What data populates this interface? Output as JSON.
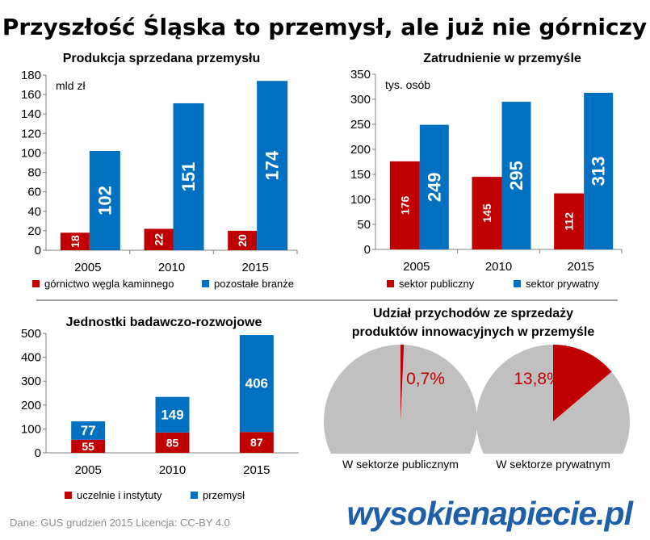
{
  "title": "Przyszłość Śląska to przemysł, ale już nie górniczy",
  "chart_data": [
    {
      "id": "sales",
      "type": "bar",
      "title": "Produkcja sprzedana przemysłu",
      "unit_label": "mld zł",
      "categories": [
        "2005",
        "2010",
        "2015"
      ],
      "series": [
        {
          "name": "górnictwo węgla kaminnego",
          "color": "#c00000",
          "values": [
            18,
            22,
            20
          ]
        },
        {
          "name": "pozostałe branże",
          "color": "#0070c0",
          "values": [
            102,
            151,
            174
          ]
        }
      ],
      "ylim": [
        0,
        180
      ],
      "yticks": [
        0,
        20,
        40,
        60,
        80,
        100,
        120,
        140,
        160,
        180
      ],
      "grid": false,
      "legend": "bottom"
    },
    {
      "id": "employment",
      "type": "bar",
      "title": "Zatrudnienie w przemyśle",
      "unit_label": "tys. osób",
      "categories": [
        "2005",
        "2010",
        "2015"
      ],
      "series": [
        {
          "name": "sektor publiczny",
          "color": "#c00000",
          "values": [
            176,
            145,
            112
          ]
        },
        {
          "name": "sektor prywatny",
          "color": "#0070c0",
          "values": [
            249,
            295,
            313
          ]
        }
      ],
      "ylim": [
        0,
        350
      ],
      "yticks": [
        0,
        50,
        100,
        150,
        200,
        250,
        300,
        350
      ],
      "grid": false,
      "legend": "bottom"
    },
    {
      "id": "rnd",
      "type": "stacked-bar",
      "title": "Jednostki badawczo-rozwojowe",
      "categories": [
        "2005",
        "2010",
        "2015"
      ],
      "series": [
        {
          "name": "uczelnie i instytuty",
          "color": "#c00000",
          "values": [
            55,
            85,
            87
          ]
        },
        {
          "name": "przemysł",
          "color": "#0070c0",
          "values": [
            77,
            149,
            406
          ]
        }
      ],
      "ylim": [
        0,
        500
      ],
      "yticks": [
        0,
        100,
        200,
        300,
        400,
        500
      ],
      "grid": false,
      "legend": "bottom"
    },
    {
      "id": "innovation",
      "type": "pie",
      "title": "Udział przychodów ze sprzedaży produktów innowacyjnych w przemyśle",
      "title_lines": [
        "Udział przychodów ze sprzedaży",
        "produktów innowacyjnych w przemyśle"
      ],
      "slices": [
        {
          "label": "W sektorze publicznym",
          "share_percent": 0.7,
          "value_label": "0,7%"
        },
        {
          "label": "W sektorze prywatnym",
          "share_percent": 13.8,
          "value_label": "13,8%"
        }
      ],
      "highlight_color": "#c00000",
      "rest_color": "#c0c0c0",
      "value_color": "#c00000"
    }
  ],
  "footer": {
    "source": "Dane: GUS   grudzień 2015   Licencja: CC-BY 4.0",
    "logo_text": "wysokienapiecie.pl",
    "logo_color": "#1f5fa8"
  }
}
